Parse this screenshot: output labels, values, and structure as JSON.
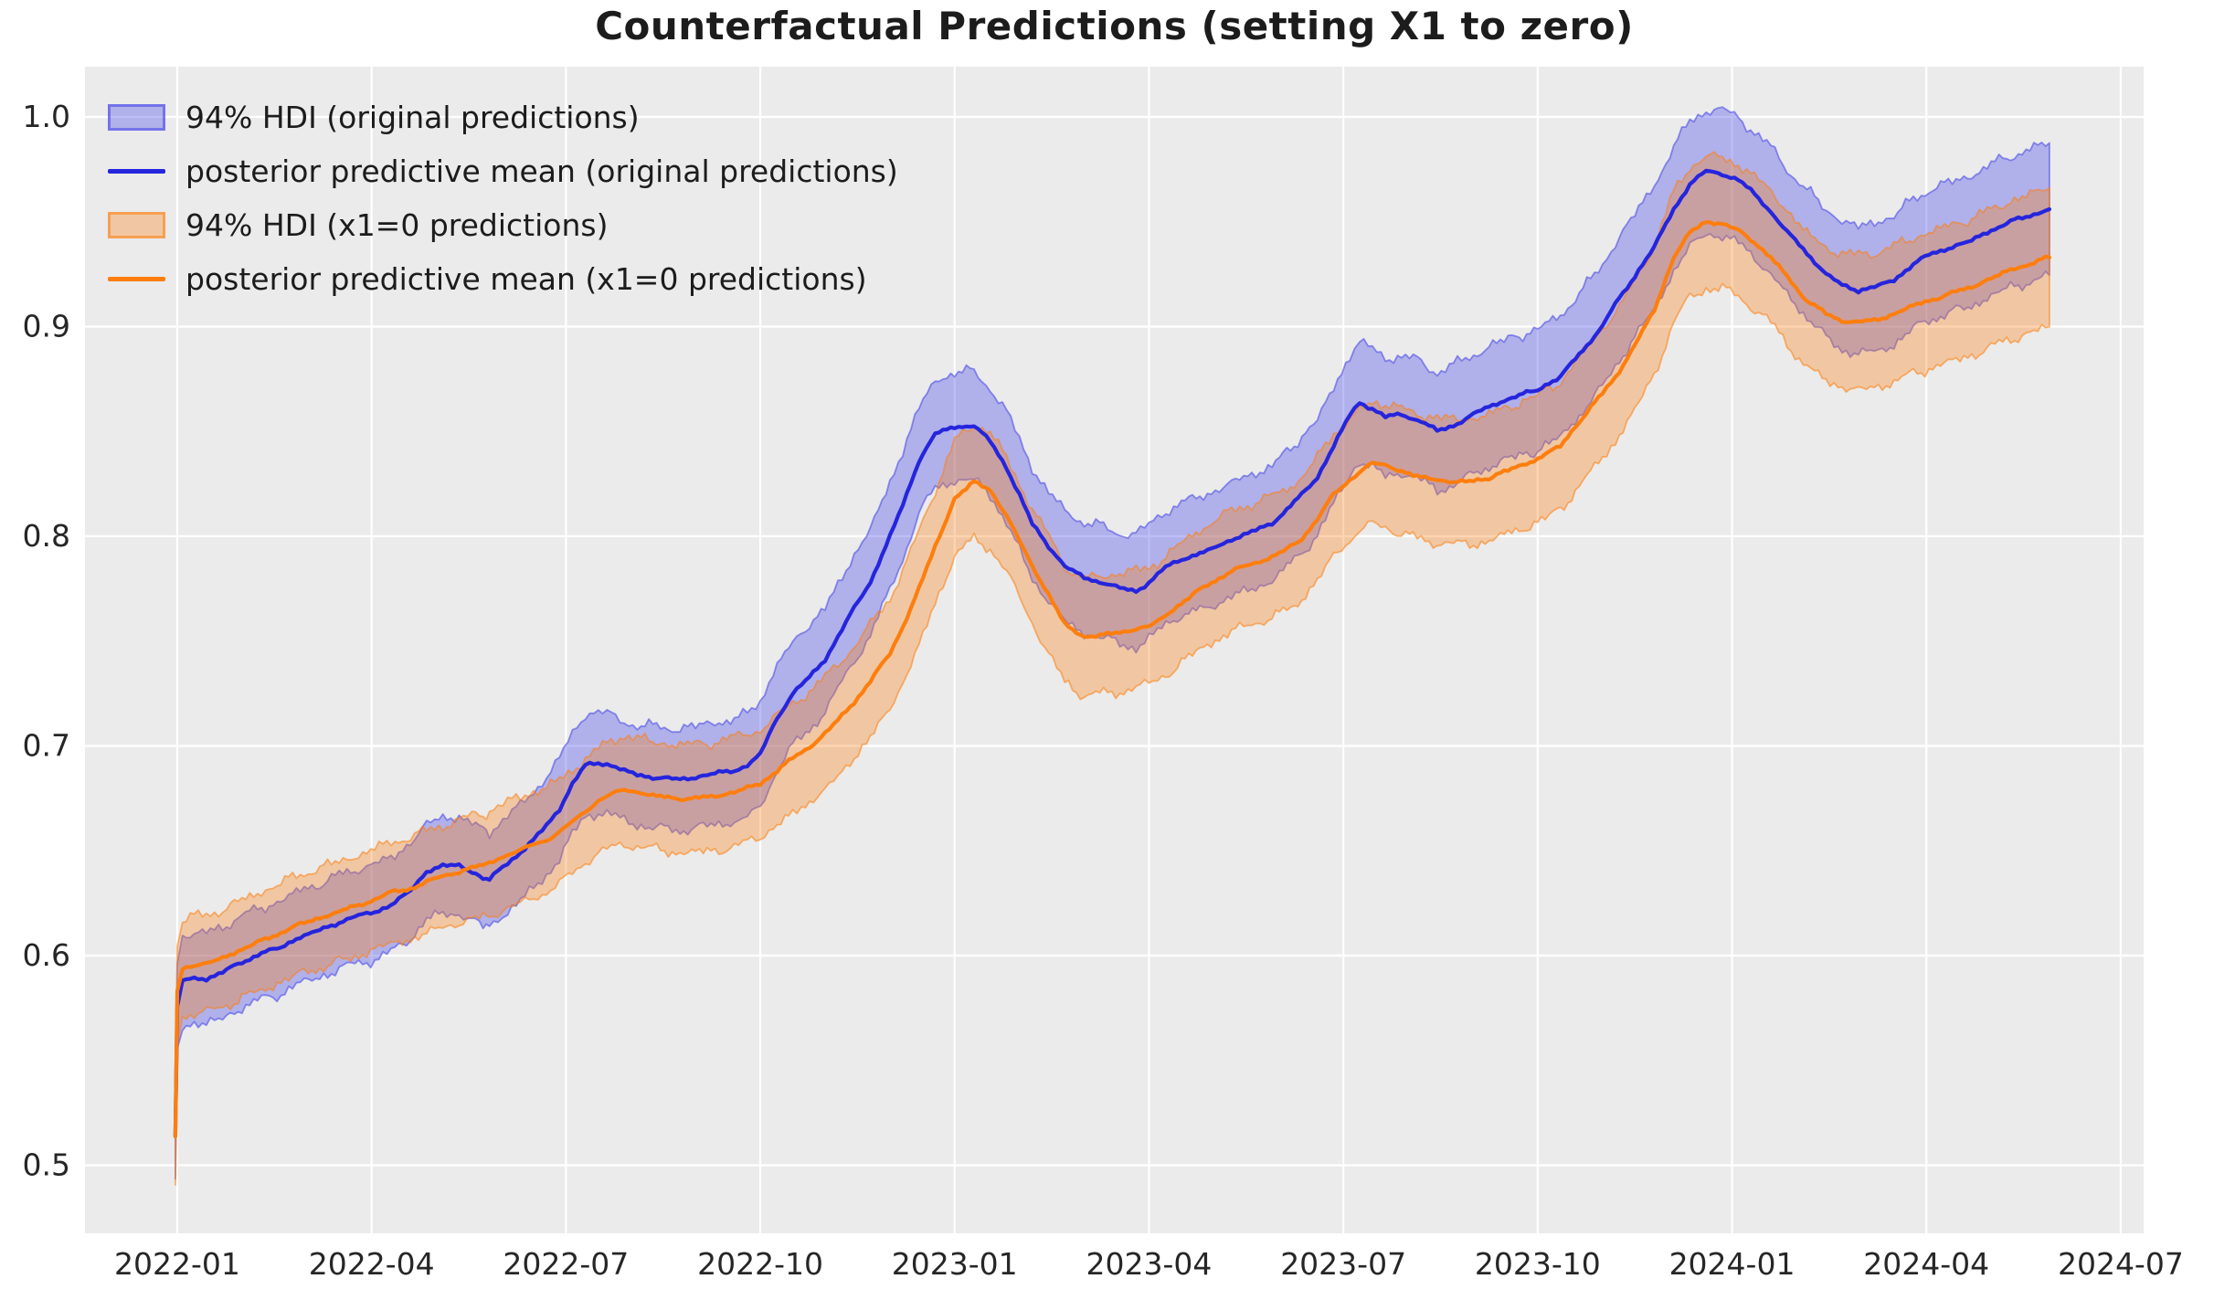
{
  "title": "Counterfactual Predictions (setting X1 to zero)",
  "colors": {
    "figure_bg": "#ffffff",
    "axes_bg": "#ebebeb",
    "grid": "#ffffff",
    "tick_label": "#262626",
    "title": "#1c1c1c",
    "blue_line": "#2525dd",
    "blue_band_fill": "rgba(66,66,232,0.35)",
    "blue_band_edge": "rgba(66,66,232,0.55)",
    "orange_line": "#fd7e0e",
    "orange_band_fill": "rgba(253,126,14,0.33)",
    "orange_band_edge": "rgba(253,126,14,0.55)"
  },
  "legend": [
    {
      "swatch": "patch",
      "fill": "rgba(66,66,232,0.35)",
      "edge": "rgba(66,66,232,0.55)",
      "label": "94% HDI (original predictions)"
    },
    {
      "swatch": "line",
      "fill": "#2525dd",
      "edge": "#2525dd",
      "label": "posterior predictive mean (original predictions)"
    },
    {
      "swatch": "patch",
      "fill": "rgba(253,126,14,0.33)",
      "edge": "rgba(253,126,14,0.55)",
      "label": "94% HDI (x1=0 predictions)"
    },
    {
      "swatch": "line",
      "fill": "#fd7e0e",
      "edge": "#fd7e0e",
      "label": "posterior predictive mean (x1=0 predictions)"
    }
  ],
  "axes": {
    "x_unit": "months since 2022-01",
    "xlim": [
      -1.4245,
      30.354
    ],
    "ylim": [
      0.46755,
      1.02397
    ],
    "x_ticks": [
      {
        "m": 0,
        "label": "2022-01"
      },
      {
        "m": 3,
        "label": "2022-04"
      },
      {
        "m": 6,
        "label": "2022-07"
      },
      {
        "m": 9,
        "label": "2022-10"
      },
      {
        "m": 12,
        "label": "2023-01"
      },
      {
        "m": 15,
        "label": "2023-04"
      },
      {
        "m": 18,
        "label": "2023-07"
      },
      {
        "m": 21,
        "label": "2023-10"
      },
      {
        "m": 24,
        "label": "2024-01"
      },
      {
        "m": 27,
        "label": "2024-04"
      },
      {
        "m": 30,
        "label": "2024-07"
      }
    ],
    "y_ticks": [
      {
        "v": 0.5,
        "label": "0.5"
      },
      {
        "v": 0.6,
        "label": "0.6"
      },
      {
        "v": 0.7,
        "label": "0.7"
      },
      {
        "v": 0.8,
        "label": "0.8"
      },
      {
        "v": 0.9,
        "label": "0.9"
      },
      {
        "v": 1.0,
        "label": "1.0"
      }
    ],
    "grid": true,
    "legend_position": "upper-left"
  },
  "chart_data": {
    "type": "line",
    "title": "Counterfactual Predictions (setting X1 to zero)",
    "xlabel": "",
    "ylabel": "",
    "x_unit": "months since 2022-01",
    "x": [
      -0.03,
      0.0,
      0.08,
      0.2,
      0.45,
      0.7,
      1.0,
      1.3,
      1.6,
      1.9,
      2.2,
      2.5,
      2.8,
      3.05,
      3.3,
      3.6,
      3.85,
      4.1,
      4.35,
      4.55,
      4.72,
      4.82,
      4.95,
      5.1,
      5.3,
      5.5,
      5.7,
      5.9,
      6.1,
      6.3,
      6.5,
      6.7,
      6.9,
      7.1,
      7.4,
      7.7,
      8.0,
      8.3,
      8.6,
      8.8,
      9.0,
      9.2,
      9.5,
      9.7,
      10.0,
      10.2,
      10.45,
      10.7,
      11.0,
      11.2,
      11.45,
      11.7,
      12.0,
      12.3,
      12.55,
      12.8,
      13.0,
      13.2,
      13.45,
      13.7,
      14.0,
      14.3,
      14.55,
      14.8,
      15.0,
      15.2,
      15.5,
      15.9,
      16.4,
      16.9,
      17.3,
      17.6,
      17.85,
      18.1,
      18.25,
      18.45,
      18.65,
      18.9,
      19.2,
      19.45,
      19.7,
      19.95,
      20.25,
      20.6,
      21.0,
      21.35,
      21.7,
      22.0,
      22.2,
      22.5,
      22.8,
      23.1,
      23.35,
      23.6,
      23.85,
      24.1,
      24.35,
      24.6,
      24.85,
      25.1,
      25.45,
      25.7,
      25.95,
      26.2,
      26.5,
      26.8,
      27.1,
      27.4,
      27.7,
      28.0,
      28.3,
      28.6,
      28.9
    ],
    "series": [
      {
        "name": "posterior predictive mean (original predictions)",
        "band_name": "94% HDI (original predictions)",
        "color_key": "blue",
        "hdi_half_width_start": 0.0215,
        "hdi_half_width_end": 0.0316,
        "mean": [
          0.513,
          0.575,
          0.588,
          0.589,
          0.589,
          0.592,
          0.597,
          0.601,
          0.604,
          0.609,
          0.612,
          0.616,
          0.619,
          0.621,
          0.624,
          0.631,
          0.64,
          0.643,
          0.643,
          0.64,
          0.637,
          0.636,
          0.64,
          0.644,
          0.649,
          0.655,
          0.662,
          0.67,
          0.682,
          0.691,
          0.692,
          0.691,
          0.688,
          0.686,
          0.685,
          0.684,
          0.685,
          0.687,
          0.688,
          0.691,
          0.696,
          0.71,
          0.725,
          0.731,
          0.741,
          0.752,
          0.766,
          0.778,
          0.8,
          0.815,
          0.836,
          0.849,
          0.852,
          0.853,
          0.845,
          0.833,
          0.82,
          0.806,
          0.795,
          0.786,
          0.78,
          0.778,
          0.775,
          0.774,
          0.778,
          0.784,
          0.789,
          0.793,
          0.8,
          0.806,
          0.818,
          0.828,
          0.843,
          0.858,
          0.864,
          0.861,
          0.857,
          0.858,
          0.855,
          0.85,
          0.853,
          0.857,
          0.862,
          0.866,
          0.87,
          0.876,
          0.889,
          0.9,
          0.911,
          0.924,
          0.938,
          0.956,
          0.968,
          0.974,
          0.973,
          0.97,
          0.963,
          0.955,
          0.945,
          0.937,
          0.925,
          0.92,
          0.917,
          0.919,
          0.922,
          0.93,
          0.935,
          0.938,
          0.941,
          0.946,
          0.95,
          0.953,
          0.956
        ]
      },
      {
        "name": "posterior predictive mean (x1=0 predictions)",
        "band_name": "94% HDI (x1=0 predictions)",
        "color_key": "orange",
        "hdi_half_width_start": 0.023,
        "hdi_half_width_end": 0.0331,
        "mean": [
          0.514,
          0.583,
          0.594,
          0.595,
          0.596,
          0.599,
          0.603,
          0.607,
          0.611,
          0.615,
          0.618,
          0.621,
          0.624,
          0.627,
          0.63,
          0.632,
          0.635,
          0.638,
          0.64,
          0.642,
          0.643,
          0.644,
          0.646,
          0.648,
          0.65,
          0.653,
          0.655,
          0.659,
          0.664,
          0.669,
          0.674,
          0.677,
          0.679,
          0.678,
          0.676,
          0.675,
          0.675,
          0.676,
          0.678,
          0.68,
          0.682,
          0.687,
          0.694,
          0.698,
          0.706,
          0.712,
          0.721,
          0.731,
          0.744,
          0.757,
          0.775,
          0.795,
          0.818,
          0.826,
          0.822,
          0.81,
          0.798,
          0.786,
          0.772,
          0.758,
          0.752,
          0.753,
          0.754,
          0.756,
          0.757,
          0.761,
          0.768,
          0.777,
          0.785,
          0.79,
          0.797,
          0.808,
          0.82,
          0.827,
          0.831,
          0.835,
          0.834,
          0.831,
          0.828,
          0.827,
          0.826,
          0.826,
          0.828,
          0.832,
          0.837,
          0.843,
          0.857,
          0.868,
          0.876,
          0.891,
          0.908,
          0.933,
          0.945,
          0.95,
          0.949,
          0.946,
          0.94,
          0.933,
          0.924,
          0.914,
          0.906,
          0.903,
          0.902,
          0.903,
          0.906,
          0.91,
          0.913,
          0.916,
          0.919,
          0.923,
          0.927,
          0.93,
          0.933
        ]
      }
    ],
    "style": {
      "mean_jitter_amp": 0.0012,
      "band_jitter_amp": 0.0038
    }
  }
}
